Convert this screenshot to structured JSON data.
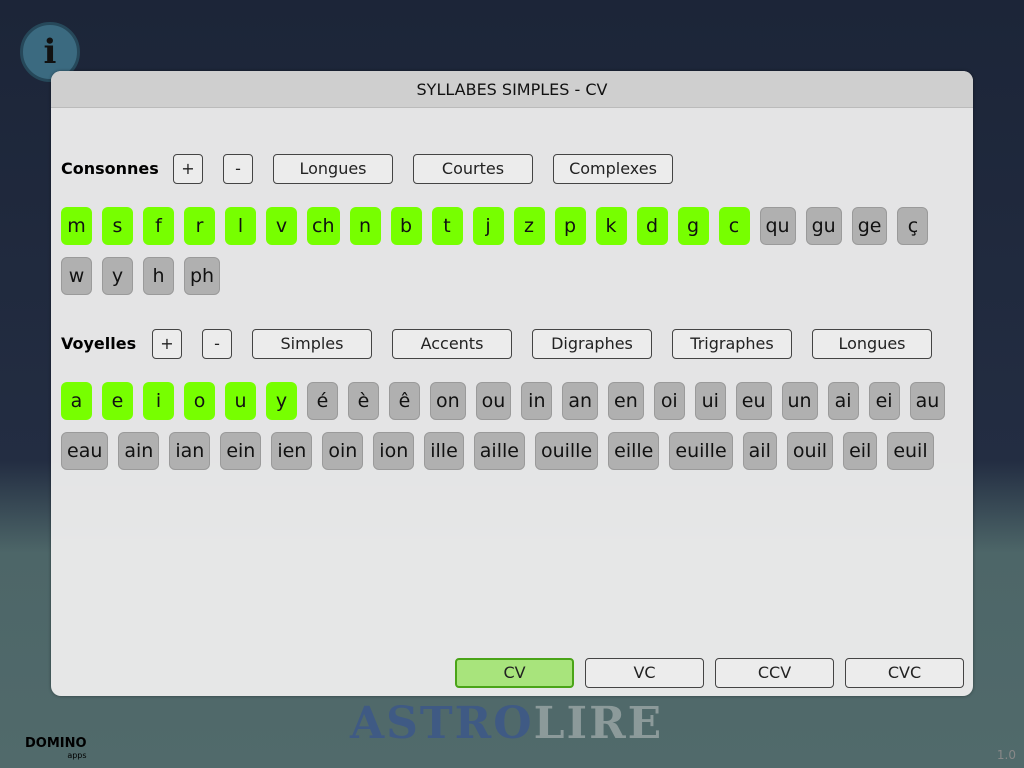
{
  "title": "SYLLABES SIMPLES - CV",
  "consonnes": {
    "label": "Consonnes",
    "plus": "+",
    "minus": "-",
    "filters": [
      "Longues",
      "Courtes",
      "Complexes"
    ],
    "tiles": [
      {
        "t": "m",
        "on": true
      },
      {
        "t": "s",
        "on": true
      },
      {
        "t": "f",
        "on": true
      },
      {
        "t": "r",
        "on": true
      },
      {
        "t": "l",
        "on": true
      },
      {
        "t": "v",
        "on": true
      },
      {
        "t": "ch",
        "on": true
      },
      {
        "t": "n",
        "on": true
      },
      {
        "t": "b",
        "on": true
      },
      {
        "t": "t",
        "on": true
      },
      {
        "t": "j",
        "on": true
      },
      {
        "t": "z",
        "on": true
      },
      {
        "t": "p",
        "on": true
      },
      {
        "t": "k",
        "on": true
      },
      {
        "t": "d",
        "on": true
      },
      {
        "t": "g",
        "on": true
      },
      {
        "t": "c",
        "on": true
      },
      {
        "t": "qu",
        "on": false
      },
      {
        "t": "gu",
        "on": false
      },
      {
        "t": "ge",
        "on": false
      },
      {
        "t": "ç",
        "on": false
      },
      {
        "t": "w",
        "on": false
      },
      {
        "t": "y",
        "on": false
      },
      {
        "t": "h",
        "on": false
      },
      {
        "t": "ph",
        "on": false
      }
    ]
  },
  "voyelles": {
    "label": "Voyelles",
    "plus": "+",
    "minus": "-",
    "filters": [
      "Simples",
      "Accents",
      "Digraphes",
      "Trigraphes",
      "Longues"
    ],
    "tiles": [
      {
        "t": "a",
        "on": true
      },
      {
        "t": "e",
        "on": true
      },
      {
        "t": "i",
        "on": true
      },
      {
        "t": "o",
        "on": true
      },
      {
        "t": "u",
        "on": true
      },
      {
        "t": "y",
        "on": true
      },
      {
        "t": "é",
        "on": false
      },
      {
        "t": "è",
        "on": false
      },
      {
        "t": "ê",
        "on": false
      },
      {
        "t": "on",
        "on": false
      },
      {
        "t": "ou",
        "on": false
      },
      {
        "t": "in",
        "on": false
      },
      {
        "t": "an",
        "on": false
      },
      {
        "t": "en",
        "on": false
      },
      {
        "t": "oi",
        "on": false
      },
      {
        "t": "ui",
        "on": false
      },
      {
        "t": "eu",
        "on": false
      },
      {
        "t": "un",
        "on": false
      },
      {
        "t": "ai",
        "on": false
      },
      {
        "t": "ei",
        "on": false
      },
      {
        "t": "au",
        "on": false
      },
      {
        "t": "eau",
        "on": false
      },
      {
        "t": "ain",
        "on": false
      },
      {
        "t": "ian",
        "on": false
      },
      {
        "t": "ein",
        "on": false
      },
      {
        "t": "ien",
        "on": false
      },
      {
        "t": "oin",
        "on": false
      },
      {
        "t": "ion",
        "on": false
      },
      {
        "t": "ille",
        "on": false
      },
      {
        "t": "aille",
        "on": false
      },
      {
        "t": "ouille",
        "on": false
      },
      {
        "t": "eille",
        "on": false
      },
      {
        "t": "euille",
        "on": false
      },
      {
        "t": "ail",
        "on": false
      },
      {
        "t": "ouil",
        "on": false
      },
      {
        "t": "eil",
        "on": false
      },
      {
        "t": "euil",
        "on": false
      }
    ]
  },
  "modes": [
    {
      "label": "CV",
      "selected": true
    },
    {
      "label": "VC",
      "selected": false
    },
    {
      "label": "CCV",
      "selected": false
    },
    {
      "label": "CVC",
      "selected": false
    }
  ],
  "footer": {
    "logo": "ASTROLIRE",
    "brand": "DOMINO apps",
    "version": "1.0"
  },
  "colors": {
    "active": "#77ff00",
    "inactive": "#b0b0b0",
    "selected_mode": "#a8e47c"
  }
}
